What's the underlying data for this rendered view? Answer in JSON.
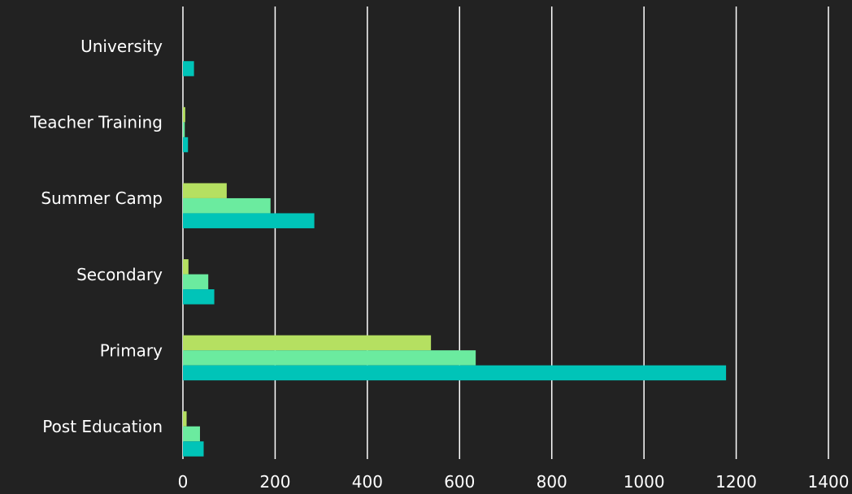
{
  "colors": {
    "background": "#222222",
    "grid": "#ffffff",
    "text": "#ffffff"
  },
  "chart_data": {
    "type": "bar",
    "orientation": "horizontal",
    "categories": [
      "University",
      "Teacher Training",
      "Summer Camp",
      "Secondary",
      "Primary",
      "Post Education"
    ],
    "series": [
      {
        "color": "#b5e061",
        "values": [
          0,
          5,
          95,
          12,
          538,
          8
        ]
      },
      {
        "color": "#6beb9f",
        "values": [
          0,
          4,
          190,
          55,
          635,
          37
        ]
      },
      {
        "color": "#00c4b8",
        "values": [
          24,
          11,
          285,
          68,
          1178,
          45
        ]
      }
    ],
    "xlim": [
      0,
      1400
    ],
    "x_ticks": [
      "0",
      "200",
      "400",
      "600",
      "800",
      "1000",
      "1200",
      "1400"
    ],
    "x_tick_values": [
      0,
      200,
      400,
      600,
      800,
      1000,
      1200,
      1400
    ],
    "grid": true,
    "legend": "none"
  }
}
